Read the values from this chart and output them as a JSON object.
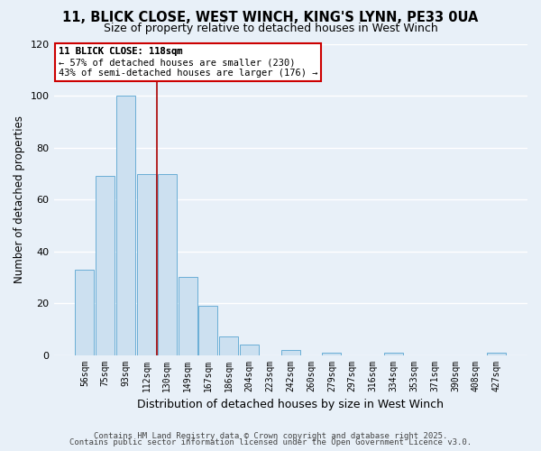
{
  "title": "11, BLICK CLOSE, WEST WINCH, KING'S LYNN, PE33 0UA",
  "subtitle": "Size of property relative to detached houses in West Winch",
  "xlabel": "Distribution of detached houses by size in West Winch",
  "ylabel": "Number of detached properties",
  "bar_labels": [
    "56sqm",
    "75sqm",
    "93sqm",
    "112sqm",
    "130sqm",
    "149sqm",
    "167sqm",
    "186sqm",
    "204sqm",
    "223sqm",
    "242sqm",
    "260sqm",
    "279sqm",
    "297sqm",
    "316sqm",
    "334sqm",
    "353sqm",
    "371sqm",
    "390sqm",
    "408sqm",
    "427sqm"
  ],
  "bar_values": [
    33,
    69,
    100,
    70,
    70,
    30,
    19,
    7,
    4,
    0,
    2,
    0,
    1,
    0,
    0,
    1,
    0,
    0,
    0,
    0,
    1
  ],
  "bar_color": "#cce0f0",
  "bar_edge_color": "#6aaed6",
  "vline_x": 3.5,
  "vline_color": "#aa0000",
  "ylim": [
    0,
    120
  ],
  "yticks": [
    0,
    20,
    40,
    60,
    80,
    100,
    120
  ],
  "annotation_title": "11 BLICK CLOSE: 118sqm",
  "annotation_line1": "← 57% of detached houses are smaller (230)",
  "annotation_line2": "43% of semi-detached houses are larger (176) →",
  "annotation_box_color": "#ffffff",
  "annotation_box_edge": "#cc0000",
  "footer1": "Contains HM Land Registry data © Crown copyright and database right 2025.",
  "footer2": "Contains public sector information licensed under the Open Government Licence v3.0.",
  "background_color": "#e8f0f8",
  "grid_color": "#ffffff"
}
